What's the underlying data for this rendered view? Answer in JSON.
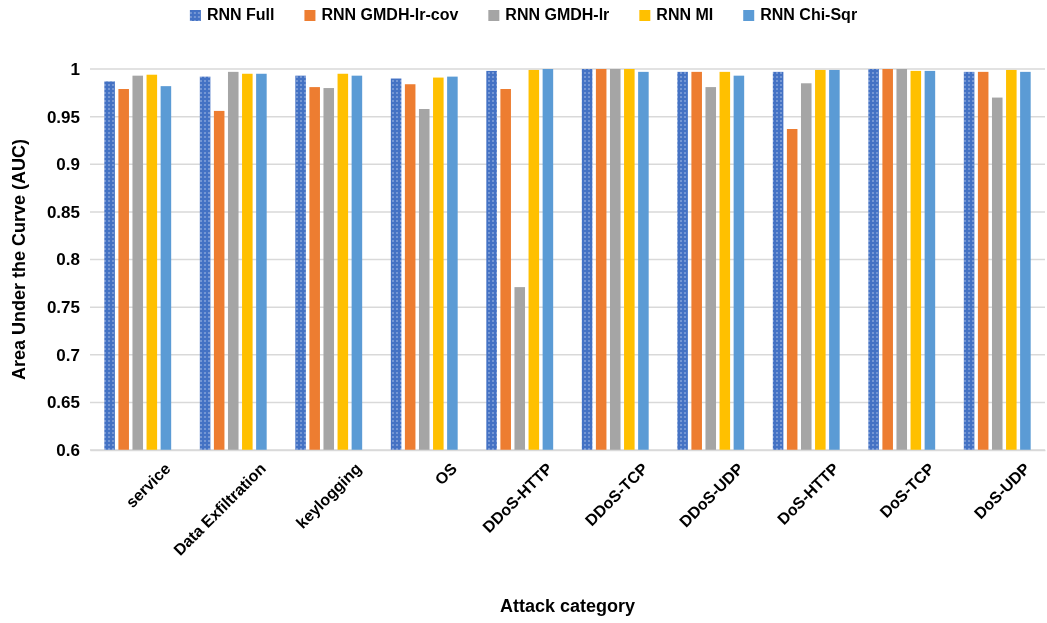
{
  "chart_data": {
    "type": "bar",
    "xlabel": "Attack category",
    "ylabel": "Area Under the Curve (AUC)",
    "categories": [
      "service",
      "Data Exfiltration",
      "keylogging",
      "OS",
      "DDoS-HTTP",
      "DDoS-TCP",
      "DDoS-UDP",
      "DoS-HTTP",
      "DoS-TCP",
      "DoS-UDP"
    ],
    "series": [
      {
        "name": "RNN Full",
        "color": "#4472c4",
        "values": [
          0.987,
          0.992,
          0.993,
          0.99,
          0.998,
          1.0,
          0.997,
          0.997,
          1.0,
          0.997
        ]
      },
      {
        "name": "RNN GMDH-lr-cov",
        "color": "#ed7d31",
        "values": [
          0.979,
          0.956,
          0.981,
          0.984,
          0.979,
          1.0,
          0.997,
          0.937,
          1.0,
          0.997
        ]
      },
      {
        "name": "RNN GMDH-lr",
        "color": "#a5a5a5",
        "values": [
          0.993,
          0.997,
          0.98,
          0.958,
          0.771,
          1.0,
          0.981,
          0.985,
          1.0,
          0.97
        ]
      },
      {
        "name": "RNN MI",
        "color": "#ffc000",
        "values": [
          0.994,
          0.995,
          0.995,
          0.991,
          0.999,
          1.0,
          0.997,
          0.999,
          0.998,
          0.999
        ]
      },
      {
        "name": "RNN Chi-Sqr",
        "color": "#5b9bd5",
        "values": [
          0.982,
          0.995,
          0.993,
          0.992,
          1.0,
          0.997,
          0.993,
          0.999,
          0.998,
          0.997
        ]
      }
    ],
    "ylim": [
      0.6,
      1
    ],
    "yticks": [
      0.6,
      0.65,
      0.7,
      0.75,
      0.8,
      0.85,
      0.9,
      0.95,
      1
    ],
    "grid": "y",
    "legend": "top"
  }
}
